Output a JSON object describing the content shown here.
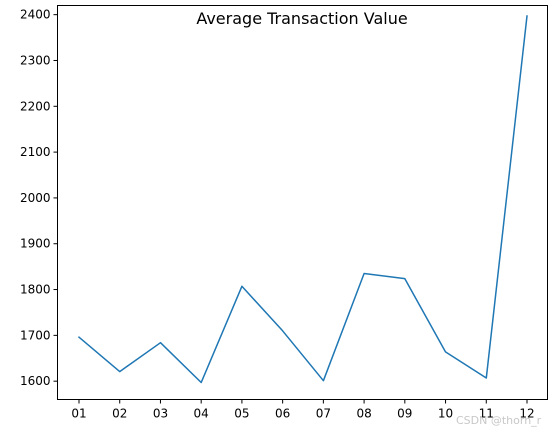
{
  "chart_data": {
    "type": "line",
    "title": "Average Transaction Value",
    "xlabel": "",
    "ylabel": "",
    "categories": [
      "01",
      "02",
      "03",
      "04",
      "05",
      "06",
      "07",
      "08",
      "09",
      "10",
      "11",
      "12"
    ],
    "series": [
      {
        "values": [
          1696,
          1621,
          1684,
          1597,
          1807,
          1710,
          1601,
          1835,
          1824,
          1664,
          1607,
          2397
        ],
        "color": "#1f77b4"
      }
    ],
    "yticks": [
      1600,
      1700,
      1800,
      1900,
      2000,
      2100,
      2200,
      2300,
      2400
    ],
    "ylim": [
      1560,
      2420
    ],
    "grid": false,
    "legend": "none"
  },
  "watermark": "CSDN @thorn_r"
}
